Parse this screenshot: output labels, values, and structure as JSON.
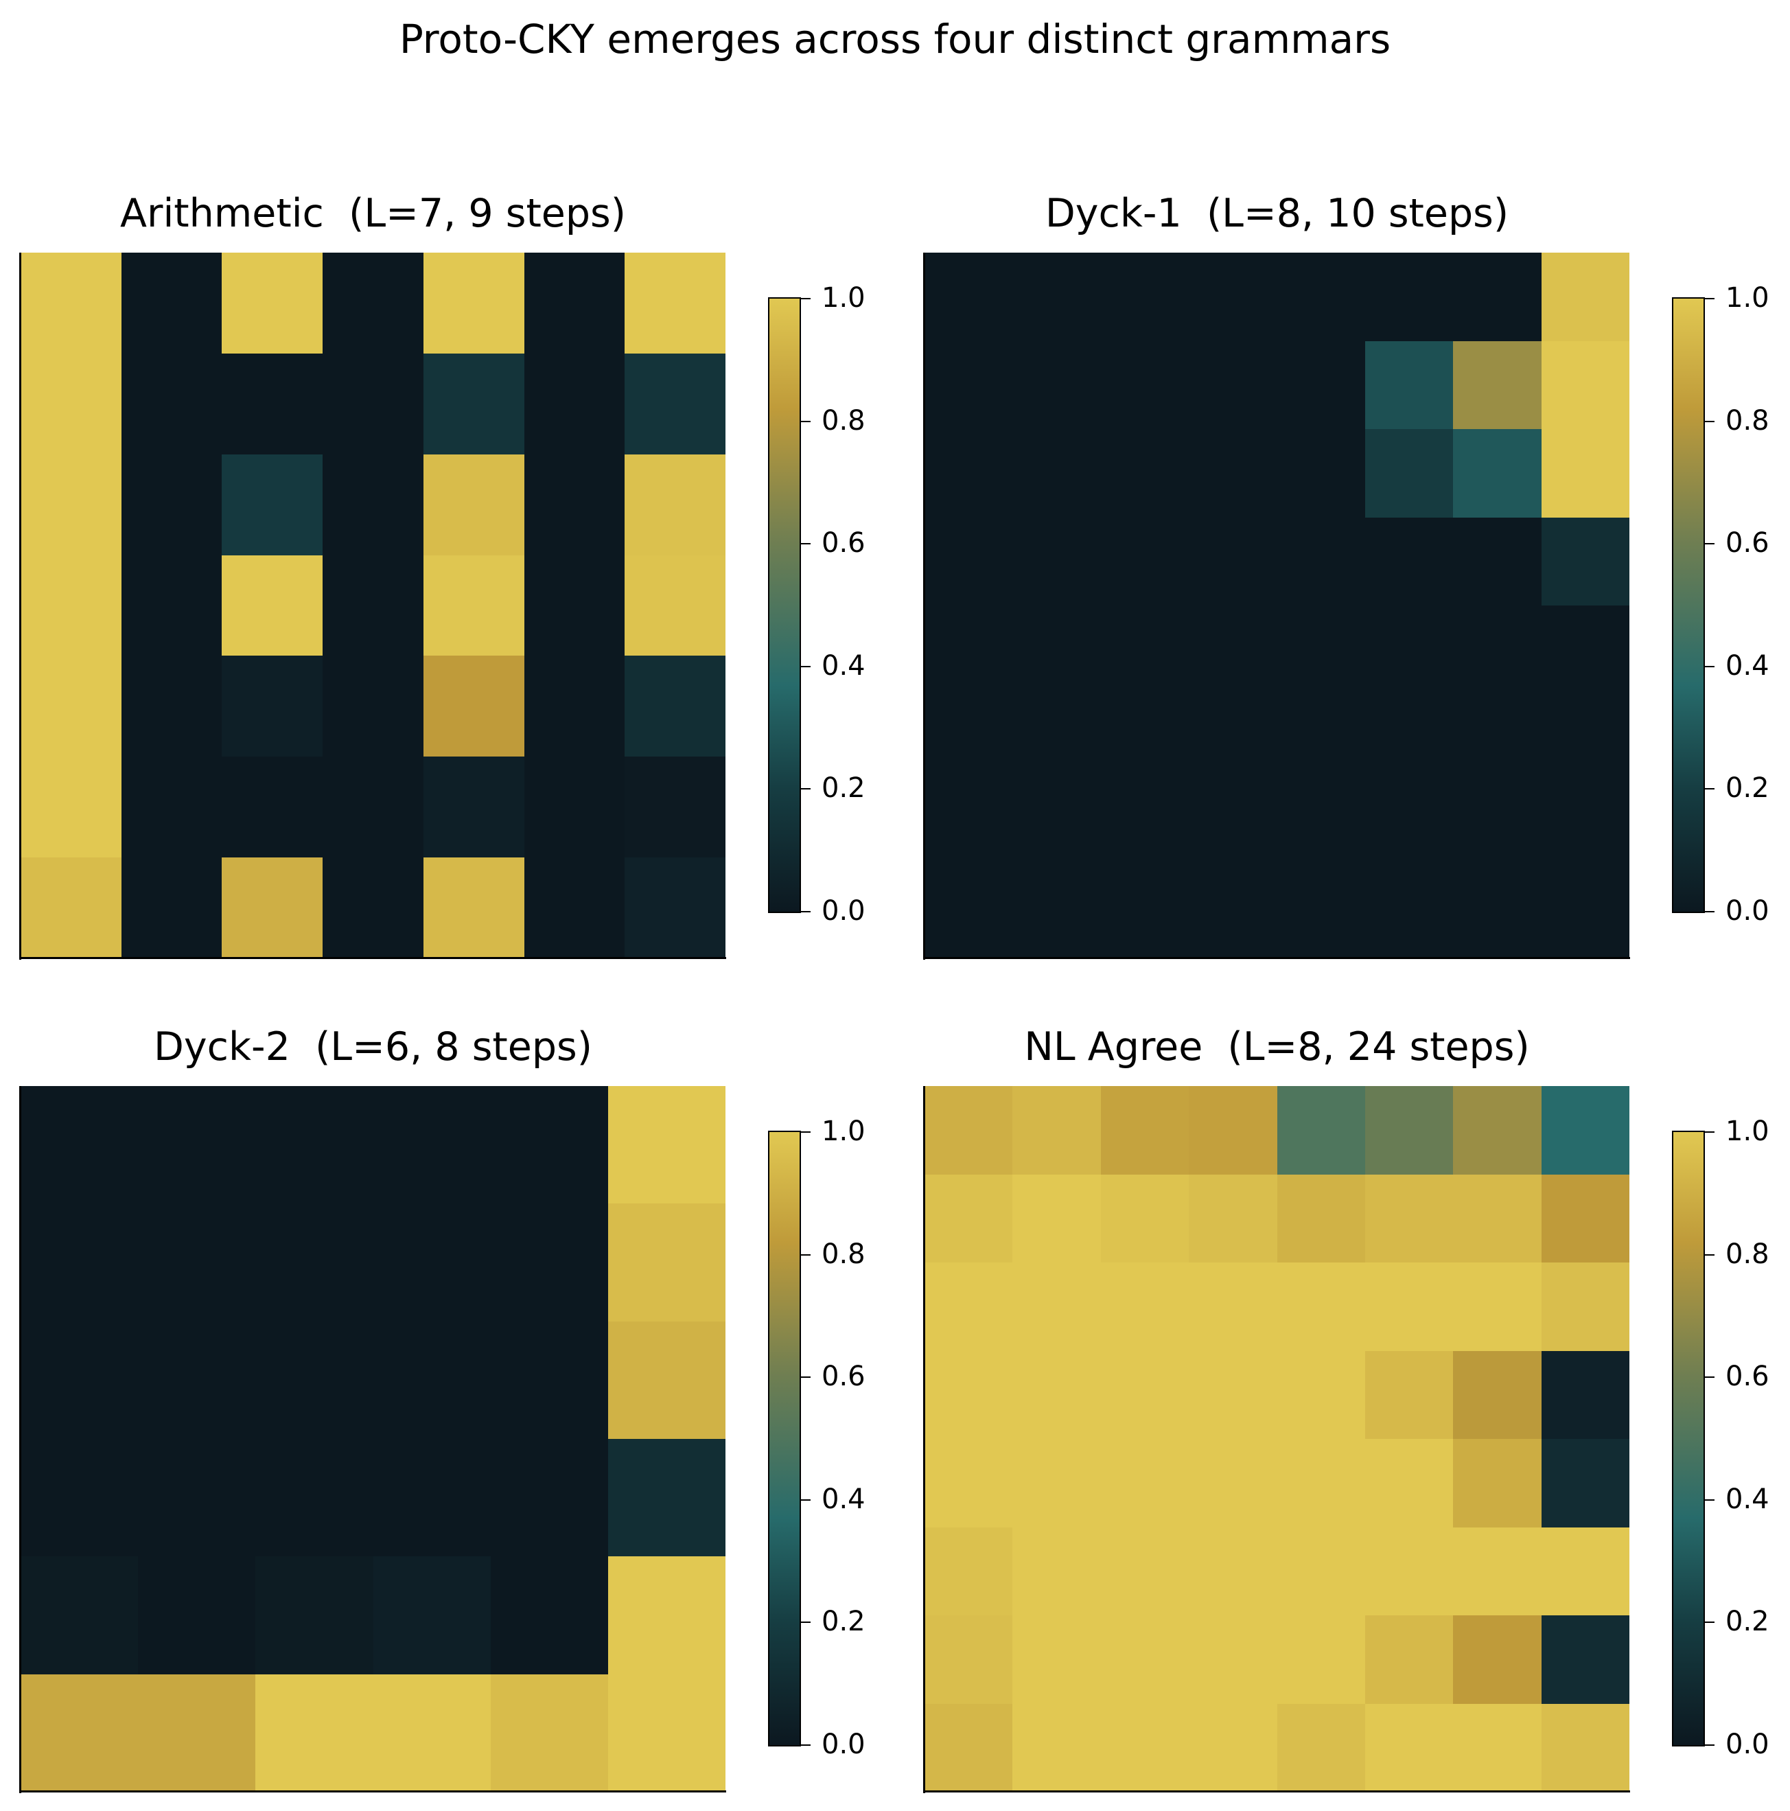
{
  "suptitle": "Proto-CKY emerges across four distinct grammars",
  "colors": {
    "background": "#ffffff",
    "colormap_stops": [
      {
        "v": 0.0,
        "color": "#0c1820"
      },
      {
        "v": 0.2,
        "color": "#163d42"
      },
      {
        "v": 0.37,
        "color": "#276b6b"
      },
      {
        "v": 0.6,
        "color": "#6e7e52"
      },
      {
        "v": 0.82,
        "color": "#bf9b3a"
      },
      {
        "v": 1.0,
        "color": "#e1c852"
      }
    ]
  },
  "colorbar": {
    "ticks": [
      "0.0",
      "0.2",
      "0.4",
      "0.6",
      "0.8",
      "1.0"
    ],
    "tick_values": [
      0.0,
      0.2,
      0.4,
      0.6,
      0.8,
      1.0
    ],
    "range": [
      0.0,
      1.0
    ]
  },
  "chart_data": [
    {
      "type": "heatmap",
      "title": "Arithmetic  (L=7, 9 steps)",
      "xlabel": "",
      "ylabel": "",
      "rows": 7,
      "cols": 7,
      "zlim": [
        0,
        1
      ],
      "values": [
        [
          1.0,
          0.0,
          1.0,
          0.0,
          1.0,
          0.0,
          1.0
        ],
        [
          1.0,
          0.0,
          0.0,
          0.0,
          0.15,
          0.0,
          0.15
        ],
        [
          1.0,
          0.0,
          0.18,
          0.0,
          0.95,
          0.0,
          0.97
        ],
        [
          1.0,
          0.0,
          1.0,
          0.0,
          0.99,
          0.0,
          0.98
        ],
        [
          1.0,
          0.0,
          0.04,
          0.0,
          0.82,
          0.0,
          0.12
        ],
        [
          1.0,
          0.0,
          0.0,
          0.0,
          0.04,
          0.0,
          0.01
        ],
        [
          0.95,
          0.0,
          0.9,
          0.0,
          0.94,
          0.0,
          0.05
        ]
      ]
    },
    {
      "type": "heatmap",
      "title": "Dyck-1  (L=8, 10 steps)",
      "xlabel": "",
      "ylabel": "",
      "rows": 8,
      "cols": 8,
      "zlim": [
        0,
        1
      ],
      "values": [
        [
          0.0,
          0.0,
          0.0,
          0.0,
          0.0,
          0.0,
          0.0,
          0.97
        ],
        [
          0.0,
          0.0,
          0.0,
          0.0,
          0.0,
          0.27,
          0.72,
          1.0
        ],
        [
          0.0,
          0.0,
          0.0,
          0.0,
          0.0,
          0.19,
          0.3,
          1.0
        ],
        [
          0.0,
          0.0,
          0.0,
          0.0,
          0.0,
          0.0,
          0.0,
          0.12
        ],
        [
          0.0,
          0.0,
          0.0,
          0.0,
          0.0,
          0.0,
          0.0,
          0.0
        ],
        [
          0.0,
          0.0,
          0.0,
          0.0,
          0.0,
          0.0,
          0.0,
          0.0
        ],
        [
          0.0,
          0.0,
          0.0,
          0.0,
          0.0,
          0.0,
          0.0,
          0.0
        ],
        [
          0.0,
          0.0,
          0.0,
          0.0,
          0.0,
          0.0,
          0.0,
          0.0
        ]
      ]
    },
    {
      "type": "heatmap",
      "title": "Dyck-2  (L=6, 8 steps)",
      "xlabel": "",
      "ylabel": "",
      "rows": 6,
      "cols": 6,
      "zlim": [
        0,
        1
      ],
      "values": [
        [
          0.0,
          0.0,
          0.0,
          0.0,
          0.0,
          1.0
        ],
        [
          0.0,
          0.0,
          0.0,
          0.0,
          0.0,
          0.95
        ],
        [
          0.0,
          0.0,
          0.0,
          0.0,
          0.0,
          0.91
        ],
        [
          0.0,
          0.0,
          0.0,
          0.0,
          0.0,
          0.12
        ],
        [
          0.02,
          0.0,
          0.02,
          0.04,
          0.0,
          1.0
        ],
        [
          0.87,
          0.87,
          1.0,
          1.0,
          0.95,
          1.0
        ]
      ]
    },
    {
      "type": "heatmap",
      "title": "NL Agree  (L=8, 24 steps)",
      "xlabel": "",
      "ylabel": "",
      "rows": 8,
      "cols": 8,
      "zlim": [
        0,
        1
      ],
      "values": [
        [
          0.9,
          0.93,
          0.85,
          0.84,
          0.5,
          0.58,
          0.72,
          0.37
        ],
        [
          0.97,
          1.0,
          0.98,
          0.96,
          0.91,
          0.94,
          0.94,
          0.82
        ],
        [
          1.0,
          1.0,
          1.0,
          1.0,
          1.0,
          1.0,
          1.0,
          0.96
        ],
        [
          1.0,
          1.0,
          1.0,
          1.0,
          1.0,
          0.94,
          0.81,
          0.05
        ],
        [
          1.0,
          1.0,
          1.0,
          1.0,
          1.0,
          1.0,
          0.89,
          0.11
        ],
        [
          0.97,
          1.0,
          1.0,
          1.0,
          1.0,
          1.0,
          1.0,
          1.0
        ],
        [
          0.96,
          1.0,
          1.0,
          1.0,
          1.0,
          0.94,
          0.82,
          0.11
        ],
        [
          0.93,
          1.0,
          1.0,
          1.0,
          0.96,
          1.0,
          1.0,
          0.96
        ]
      ]
    }
  ]
}
